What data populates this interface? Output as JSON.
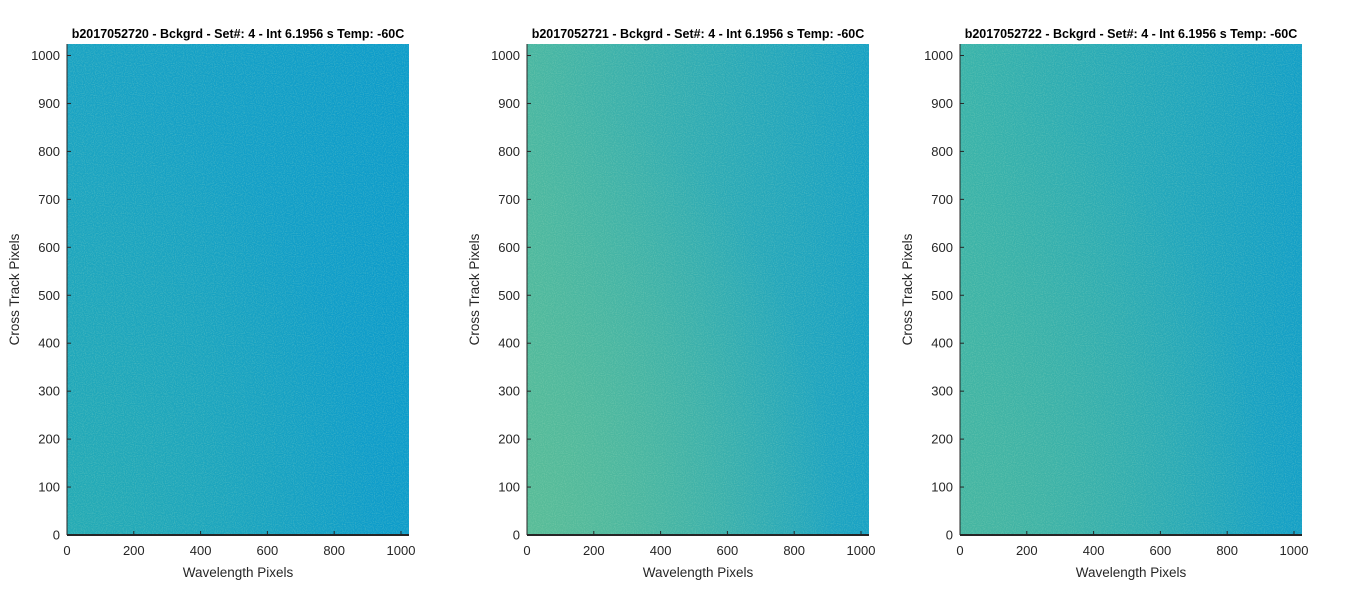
{
  "figure": {
    "background": "#ffffff"
  },
  "chart_data": [
    {
      "type": "heatmap",
      "title": "b2017052720 - Bckgrd - Set#: 4 - Int 6.1956 s Temp: -60C",
      "xlabel": "Wavelength Pixels",
      "ylabel": "Cross Track Pixels",
      "xlim": [
        0,
        1024
      ],
      "ylim": [
        0,
        1024
      ],
      "xticks": [
        0,
        200,
        400,
        600,
        800,
        1000
      ],
      "yticks": [
        0,
        100,
        200,
        300,
        400,
        500,
        600,
        700,
        800,
        900,
        1000
      ],
      "colormap": "parula",
      "color_left": "#1aa3c4",
      "color_right": "#0d9ccb",
      "color_corner": "#27acb2"
    },
    {
      "type": "heatmap",
      "title": "b2017052721 - Bckgrd - Set#: 4 - Int 6.1956 s Temp: -60C",
      "xlabel": "Wavelength Pixels",
      "ylabel": "Cross Track Pixels",
      "xlim": [
        0,
        1024
      ],
      "ylim": [
        0,
        1024
      ],
      "xticks": [
        0,
        200,
        400,
        600,
        800,
        1000
      ],
      "yticks": [
        0,
        100,
        200,
        300,
        400,
        500,
        600,
        700,
        800,
        900,
        1000
      ],
      "colormap": "parula",
      "color_left": "#4ab7a2",
      "color_right": "#17a1c5",
      "color_corner": "#5bbd96"
    },
    {
      "type": "heatmap",
      "title": "b2017052722 - Bckgrd - Set#: 4 - Int 6.1956 s Temp: -60C",
      "xlabel": "Wavelength Pixels",
      "ylabel": "Cross Track Pixels",
      "xlim": [
        0,
        1024
      ],
      "ylim": [
        0,
        1024
      ],
      "xticks": [
        0,
        200,
        400,
        600,
        800,
        1000
      ],
      "yticks": [
        0,
        100,
        200,
        300,
        400,
        500,
        600,
        700,
        800,
        900,
        1000
      ],
      "colormap": "parula",
      "color_left": "#3ab3aa",
      "color_right": "#139fc7",
      "color_corner": "#48b6a0"
    }
  ]
}
